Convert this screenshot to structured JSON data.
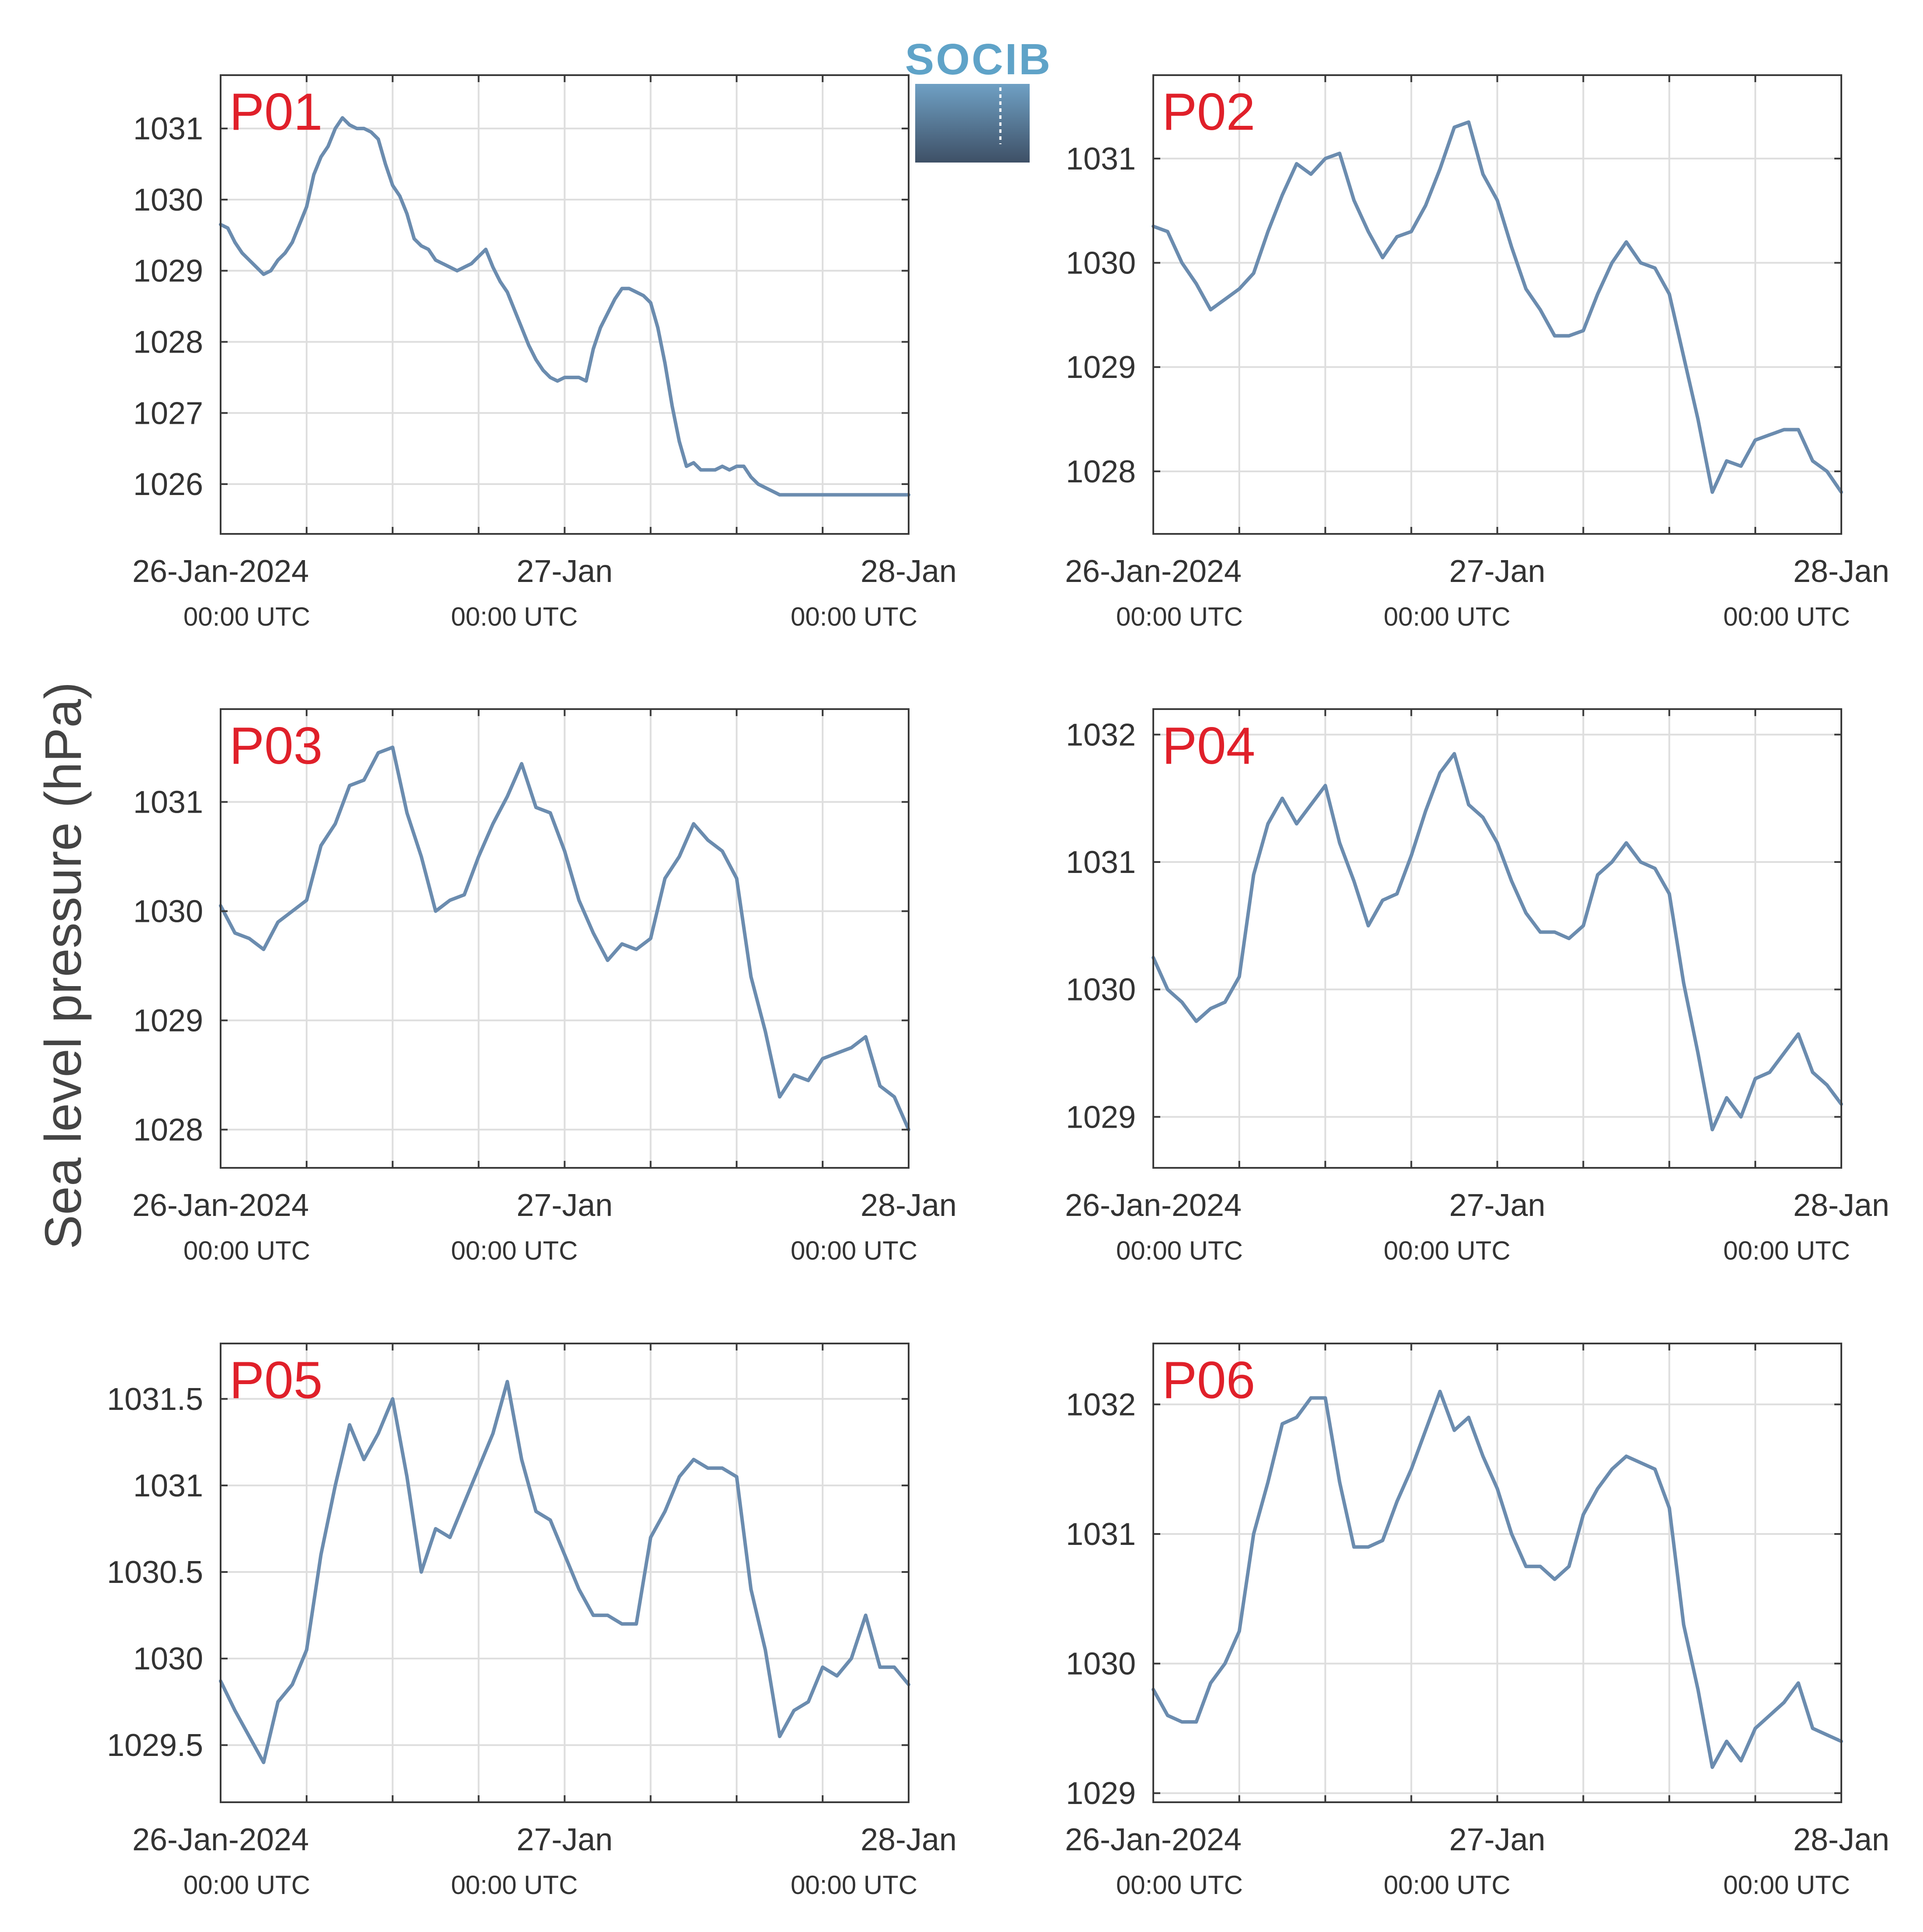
{
  "figure": {
    "ylabel": "Sea level pressure (hPa)",
    "logo_text": "SOCIB",
    "line_color": "#6b8caf",
    "panel_label_color": "#e0202a",
    "grid": true
  },
  "chart_data": [
    {
      "type": "line",
      "label": "P01",
      "x_unit": "hours since 26-Jan-2024 00:00 UTC",
      "xlim": [
        0,
        48
      ],
      "x_ticks": [
        0,
        24,
        48
      ],
      "x_tick_labels": [
        "26-Jan-2024",
        "27-Jan",
        "28-Jan"
      ],
      "x_tick_sublabels": [
        "00:00 UTC",
        "00:00 UTC",
        "00:00 UTC"
      ],
      "ylim": [
        1025.3,
        1031.75
      ],
      "y_ticks": [
        1026,
        1027,
        1028,
        1029,
        1030,
        1031
      ],
      "y_tick_labels": [
        "1026",
        "1027",
        "1028",
        "1029",
        "1030",
        "1031"
      ],
      "x": [
        0,
        0.5,
        1,
        1.5,
        2,
        2.5,
        3,
        3.5,
        4,
        4.5,
        5,
        5.5,
        6,
        6.5,
        7,
        7.5,
        8,
        8.5,
        9,
        9.5,
        10,
        10.5,
        11,
        11.5,
        12,
        12.5,
        13,
        13.5,
        14,
        14.5,
        15,
        15.5,
        16,
        16.5,
        17,
        17.5,
        18,
        18.5,
        19,
        19.5,
        20,
        20.5,
        21,
        21.5,
        22,
        22.5,
        23,
        23.5,
        24,
        24.5,
        25,
        25.5,
        26,
        26.5,
        27,
        27.5,
        28,
        28.5,
        29,
        29.5,
        30,
        30.5,
        31,
        31.5,
        32,
        32.5,
        33,
        33.5,
        34,
        34.5,
        35,
        35.5,
        36,
        36.5,
        37,
        37.5,
        38,
        38.5,
        39,
        39.5,
        40,
        40.5,
        41,
        41.5,
        42,
        42.5,
        43,
        43.5,
        44,
        44.5,
        45,
        45.5,
        46,
        46.5,
        47,
        47.5,
        48
      ],
      "y": [
        1029.65,
        1029.6,
        1029.4,
        1029.25,
        1029.15,
        1029.05,
        1028.95,
        1029,
        1029.15,
        1029.25,
        1029.4,
        1029.65,
        1029.9,
        1030.35,
        1030.6,
        1030.75,
        1031,
        1031.15,
        1031.05,
        1031,
        1031,
        1030.95,
        1030.85,
        1030.5,
        1030.2,
        1030.05,
        1029.8,
        1029.45,
        1029.35,
        1029.3,
        1029.15,
        1029.1,
        1029.05,
        1029,
        1029.05,
        1029.1,
        1029.2,
        1029.3,
        1029.05,
        1028.85,
        1028.7,
        1028.45,
        1028.2,
        1027.95,
        1027.75,
        1027.6,
        1027.5,
        1027.45,
        1027.5,
        1027.5,
        1027.5,
        1027.45,
        1027.9,
        1028.2,
        1028.4,
        1028.6,
        1028.75,
        1028.75,
        1028.7,
        1028.65,
        1028.55,
        1028.2,
        1027.7,
        1027.1,
        1026.6,
        1026.25,
        1026.3,
        1026.2,
        1026.2,
        1026.2,
        1026.25,
        1026.2,
        1026.25,
        1026.25,
        1026.1,
        1026,
        1025.95,
        1025.9,
        1025.85,
        1025.85,
        1025.85,
        1025.85,
        1025.85,
        1025.85,
        1025.85,
        1025.85,
        1025.85,
        1025.85,
        1025.85,
        1025.85,
        1025.85,
        1025.85,
        1025.85,
        1025.85,
        1025.85,
        1025.85,
        1025.85
      ]
    },
    {
      "type": "line",
      "label": "P02",
      "x_unit": "hours since 26-Jan-2024 00:00 UTC",
      "xlim": [
        0,
        48
      ],
      "x_ticks": [
        0,
        24,
        48
      ],
      "x_tick_labels": [
        "26-Jan-2024",
        "27-Jan",
        "28-Jan"
      ],
      "x_tick_sublabels": [
        "00:00 UTC",
        "00:00 UTC",
        "00:00 UTC"
      ],
      "ylim": [
        1027.4,
        1031.8
      ],
      "y_ticks": [
        1028,
        1029,
        1030,
        1031
      ],
      "y_tick_labels": [
        "1028",
        "1029",
        "1030",
        "1031"
      ],
      "x": [
        0,
        1,
        2,
        3,
        4,
        5,
        6,
        7,
        8,
        9,
        10,
        11,
        12,
        13,
        14,
        15,
        16,
        17,
        18,
        19,
        20,
        21,
        22,
        23,
        24,
        25,
        26,
        27,
        28,
        29,
        30,
        31,
        32,
        33,
        34,
        35,
        36,
        37,
        38,
        39,
        40,
        41,
        42,
        43,
        44,
        45,
        46,
        47,
        48
      ],
      "y": [
        1030.35,
        1030.3,
        1030,
        1029.8,
        1029.55,
        1029.65,
        1029.75,
        1029.9,
        1030.3,
        1030.65,
        1030.95,
        1030.85,
        1031,
        1031.05,
        1030.6,
        1030.3,
        1030.05,
        1030.25,
        1030.3,
        1030.55,
        1030.9,
        1031.3,
        1031.35,
        1030.85,
        1030.6,
        1030.15,
        1029.75,
        1029.55,
        1029.3,
        1029.3,
        1029.35,
        1029.7,
        1030,
        1030.2,
        1030,
        1029.95,
        1029.7,
        1029.1,
        1028.5,
        1027.8,
        1028.1,
        1028.05,
        1028.3,
        1028.35,
        1028.4,
        1028.4,
        1028.1,
        1028,
        1027.8
      ]
    },
    {
      "type": "line",
      "label": "P03",
      "x_unit": "hours since 26-Jan-2024 00:00 UTC",
      "xlim": [
        0,
        48
      ],
      "x_ticks": [
        0,
        24,
        48
      ],
      "x_tick_labels": [
        "26-Jan-2024",
        "27-Jan",
        "28-Jan"
      ],
      "x_tick_sublabels": [
        "00:00 UTC",
        "00:00 UTC",
        "00:00 UTC"
      ],
      "ylim": [
        1027.65,
        1031.85
      ],
      "y_ticks": [
        1028,
        1029,
        1030,
        1031
      ],
      "y_tick_labels": [
        "1028",
        "1029",
        "1030",
        "1031"
      ],
      "x": [
        0,
        1,
        2,
        3,
        4,
        5,
        6,
        7,
        8,
        9,
        10,
        11,
        12,
        13,
        14,
        15,
        16,
        17,
        18,
        19,
        20,
        21,
        22,
        23,
        24,
        25,
        26,
        27,
        28,
        29,
        30,
        31,
        32,
        33,
        34,
        35,
        36,
        37,
        38,
        39,
        40,
        41,
        42,
        43,
        44,
        45,
        46,
        47,
        48
      ],
      "y": [
        1030.05,
        1029.8,
        1029.75,
        1029.65,
        1029.9,
        1030,
        1030.1,
        1030.6,
        1030.8,
        1031.15,
        1031.2,
        1031.45,
        1031.5,
        1030.9,
        1030.5,
        1030,
        1030.1,
        1030.15,
        1030.5,
        1030.8,
        1031.05,
        1031.35,
        1030.95,
        1030.9,
        1030.55,
        1030.1,
        1029.8,
        1029.55,
        1029.7,
        1029.65,
        1029.75,
        1030.3,
        1030.5,
        1030.8,
        1030.65,
        1030.55,
        1030.3,
        1029.4,
        1028.9,
        1028.3,
        1028.5,
        1028.45,
        1028.65,
        1028.7,
        1028.75,
        1028.85,
        1028.4,
        1028.3,
        1028
      ]
    },
    {
      "type": "line",
      "label": "P04",
      "x_unit": "hours since 26-Jan-2024 00:00 UTC",
      "xlim": [
        0,
        48
      ],
      "x_ticks": [
        0,
        24,
        48
      ],
      "x_tick_labels": [
        "26-Jan-2024",
        "27-Jan",
        "28-Jan"
      ],
      "x_tick_sublabels": [
        "00:00 UTC",
        "00:00 UTC",
        "00:00 UTC"
      ],
      "ylim": [
        1028.6,
        1032.2
      ],
      "y_ticks": [
        1029,
        1030,
        1031,
        1032
      ],
      "y_tick_labels": [
        "1029",
        "1030",
        "1031",
        "1032"
      ],
      "x": [
        0,
        1,
        2,
        3,
        4,
        5,
        6,
        7,
        8,
        9,
        10,
        11,
        12,
        13,
        14,
        15,
        16,
        17,
        18,
        19,
        20,
        21,
        22,
        23,
        24,
        25,
        26,
        27,
        28,
        29,
        30,
        31,
        32,
        33,
        34,
        35,
        36,
        37,
        38,
        39,
        40,
        41,
        42,
        43,
        44,
        45,
        46,
        47,
        48
      ],
      "y": [
        1030.25,
        1030,
        1029.9,
        1029.75,
        1029.85,
        1029.9,
        1030.1,
        1030.9,
        1031.3,
        1031.5,
        1031.3,
        1031.45,
        1031.6,
        1031.15,
        1030.85,
        1030.5,
        1030.7,
        1030.75,
        1031.05,
        1031.4,
        1031.7,
        1031.85,
        1031.45,
        1031.35,
        1031.15,
        1030.85,
        1030.6,
        1030.45,
        1030.45,
        1030.4,
        1030.5,
        1030.9,
        1031,
        1031.15,
        1031,
        1030.95,
        1030.75,
        1030.05,
        1029.5,
        1028.9,
        1029.15,
        1029,
        1029.3,
        1029.35,
        1029.5,
        1029.65,
        1029.35,
        1029.25,
        1029.1
      ]
    },
    {
      "type": "line",
      "label": "P05",
      "x_unit": "hours since 26-Jan-2024 00:00 UTC",
      "xlim": [
        0,
        48
      ],
      "x_ticks": [
        0,
        24,
        48
      ],
      "x_tick_labels": [
        "26-Jan-2024",
        "27-Jan",
        "28-Jan"
      ],
      "x_tick_sublabels": [
        "00:00 UTC",
        "00:00 UTC",
        "00:00 UTC"
      ],
      "ylim": [
        1029.17,
        1031.82
      ],
      "y_ticks": [
        1029.5,
        1030,
        1030.5,
        1031,
        1031.5
      ],
      "y_tick_labels": [
        "1029.5",
        "1030",
        "1030.5",
        "1031",
        "1031.5"
      ],
      "x": [
        0,
        1,
        2,
        3,
        4,
        5,
        6,
        7,
        8,
        9,
        10,
        11,
        12,
        13,
        14,
        15,
        16,
        17,
        18,
        19,
        20,
        21,
        22,
        23,
        24,
        25,
        26,
        27,
        28,
        29,
        30,
        31,
        32,
        33,
        34,
        35,
        36,
        37,
        38,
        39,
        40,
        41,
        42,
        43,
        44,
        45,
        46,
        47,
        48
      ],
      "y": [
        1029.87,
        1029.7,
        1029.55,
        1029.4,
        1029.75,
        1029.85,
        1030.05,
        1030.6,
        1031,
        1031.35,
        1031.15,
        1031.3,
        1031.5,
        1031.05,
        1030.5,
        1030.75,
        1030.7,
        1030.9,
        1031.1,
        1031.3,
        1031.6,
        1031.15,
        1030.85,
        1030.8,
        1030.6,
        1030.4,
        1030.25,
        1030.25,
        1030.2,
        1030.2,
        1030.7,
        1030.85,
        1031.05,
        1031.15,
        1031.1,
        1031.1,
        1031.05,
        1030.4,
        1030.05,
        1029.55,
        1029.7,
        1029.75,
        1029.95,
        1029.9,
        1030,
        1030.25,
        1029.95,
        1029.95,
        1029.85
      ]
    },
    {
      "type": "line",
      "label": "P06",
      "x_unit": "hours since 26-Jan-2024 00:00 UTC",
      "xlim": [
        0,
        48
      ],
      "x_ticks": [
        0,
        24,
        48
      ],
      "x_tick_labels": [
        "26-Jan-2024",
        "27-Jan",
        "28-Jan"
      ],
      "x_tick_sublabels": [
        "00:00 UTC",
        "00:00 UTC",
        "00:00 UTC"
      ],
      "ylim": [
        1028.93,
        1032.47
      ],
      "y_ticks": [
        1029,
        1030,
        1031,
        1032
      ],
      "y_tick_labels": [
        "1029",
        "1030",
        "1031",
        "1032"
      ],
      "x": [
        0,
        1,
        2,
        3,
        4,
        5,
        6,
        7,
        8,
        9,
        10,
        11,
        12,
        13,
        14,
        15,
        16,
        17,
        18,
        19,
        20,
        21,
        22,
        23,
        24,
        25,
        26,
        27,
        28,
        29,
        30,
        31,
        32,
        33,
        34,
        35,
        36,
        37,
        38,
        39,
        40,
        41,
        42,
        43,
        44,
        45,
        46,
        47,
        48
      ],
      "y": [
        1029.8,
        1029.6,
        1029.55,
        1029.55,
        1029.85,
        1030,
        1030.25,
        1031,
        1031.4,
        1031.85,
        1031.9,
        1032.05,
        1032.05,
        1031.4,
        1030.9,
        1030.9,
        1030.95,
        1031.25,
        1031.5,
        1031.8,
        1032.1,
        1031.8,
        1031.9,
        1031.6,
        1031.35,
        1031,
        1030.75,
        1030.75,
        1030.65,
        1030.75,
        1031.15,
        1031.35,
        1031.5,
        1031.6,
        1031.55,
        1031.5,
        1031.2,
        1030.3,
        1029.8,
        1029.2,
        1029.4,
        1029.25,
        1029.5,
        1029.6,
        1029.7,
        1029.85,
        1029.5,
        1029.45,
        1029.4
      ]
    }
  ]
}
